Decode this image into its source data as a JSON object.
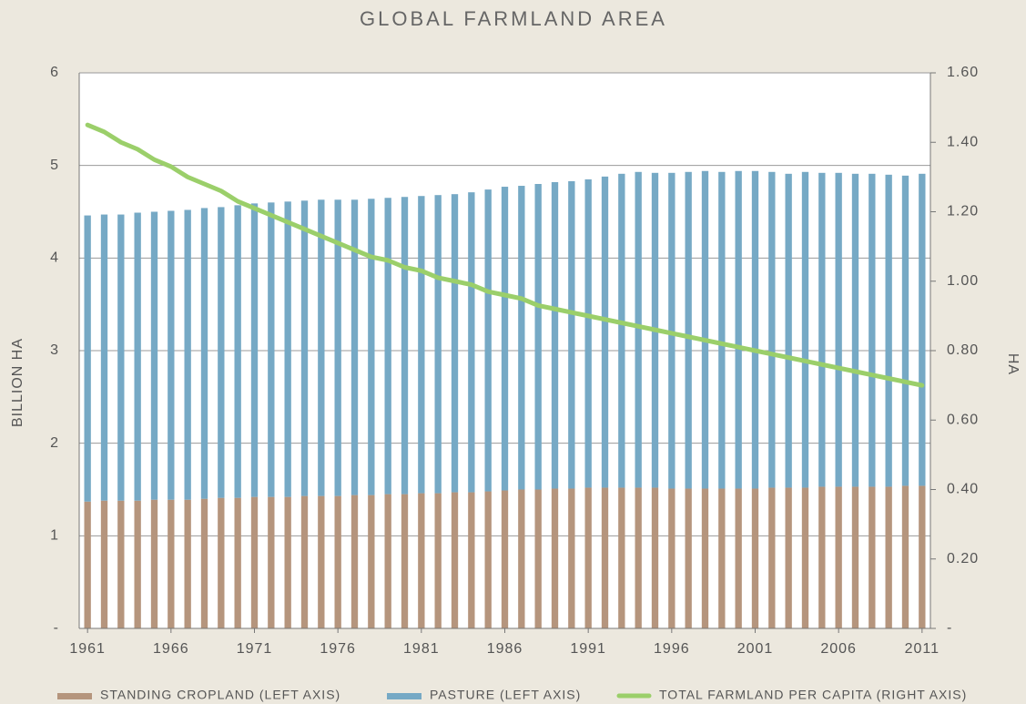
{
  "chart_data": {
    "type": "bar",
    "stacked": true,
    "title": "GLOBAL FARMLAND AREA",
    "y_label": "BILLION HA",
    "y2_label": "HA",
    "x": [
      1961,
      1962,
      1963,
      1964,
      1965,
      1966,
      1967,
      1968,
      1969,
      1970,
      1971,
      1972,
      1973,
      1974,
      1975,
      1976,
      1977,
      1978,
      1979,
      1980,
      1981,
      1982,
      1983,
      1984,
      1985,
      1986,
      1987,
      1988,
      1989,
      1990,
      1991,
      1992,
      1993,
      1994,
      1995,
      1996,
      1997,
      1998,
      1999,
      2000,
      2001,
      2002,
      2003,
      2004,
      2005,
      2006,
      2007,
      2008,
      2009,
      2010,
      2011
    ],
    "xlim": [
      1960.5,
      2011.5
    ],
    "xticks": [
      1961,
      1966,
      1971,
      1976,
      1981,
      1986,
      1991,
      1996,
      2001,
      2006,
      2011
    ],
    "ylim": [
      0,
      6
    ],
    "yticks": [
      {
        "value": 0,
        "label": "-"
      },
      1,
      2,
      3,
      4,
      5,
      6
    ],
    "y2lim": [
      0,
      1.6
    ],
    "y2ticks": [
      {
        "value": 0,
        "label": "-"
      },
      {
        "value": 0.2,
        "label": "0.20"
      },
      {
        "value": 0.4,
        "label": "0.40"
      },
      {
        "value": 0.6,
        "label": "0.60"
      },
      {
        "value": 0.8,
        "label": "0.80"
      },
      {
        "value": 1.0,
        "label": "1.00"
      },
      {
        "value": 1.2,
        "label": "1.20"
      },
      {
        "value": 1.4,
        "label": "1.40"
      },
      {
        "value": 1.6,
        "label": "1.60"
      }
    ],
    "grid": true,
    "series": [
      {
        "name": "STANDING CROPLAND (LEFT AXIS)",
        "color": "#b5957d",
        "type": "bar",
        "values": [
          1.37,
          1.38,
          1.38,
          1.38,
          1.39,
          1.39,
          1.39,
          1.4,
          1.41,
          1.41,
          1.42,
          1.42,
          1.42,
          1.43,
          1.43,
          1.43,
          1.44,
          1.44,
          1.45,
          1.45,
          1.46,
          1.46,
          1.47,
          1.47,
          1.48,
          1.49,
          1.5,
          1.5,
          1.51,
          1.51,
          1.52,
          1.52,
          1.52,
          1.52,
          1.52,
          1.51,
          1.51,
          1.51,
          1.51,
          1.51,
          1.51,
          1.52,
          1.52,
          1.52,
          1.53,
          1.53,
          1.53,
          1.53,
          1.53,
          1.54,
          1.54
        ]
      },
      {
        "name": "PASTURE (LEFT AXIS)",
        "color": "#76a9c5",
        "type": "bar",
        "values": [
          3.09,
          3.09,
          3.09,
          3.11,
          3.11,
          3.12,
          3.13,
          3.14,
          3.14,
          3.16,
          3.17,
          3.18,
          3.19,
          3.19,
          3.2,
          3.2,
          3.19,
          3.2,
          3.2,
          3.21,
          3.21,
          3.22,
          3.22,
          3.24,
          3.26,
          3.28,
          3.28,
          3.3,
          3.31,
          3.32,
          3.33,
          3.36,
          3.39,
          3.41,
          3.4,
          3.41,
          3.42,
          3.43,
          3.42,
          3.43,
          3.43,
          3.41,
          3.39,
          3.41,
          3.39,
          3.39,
          3.38,
          3.38,
          3.37,
          3.35,
          3.37
        ]
      },
      {
        "name": "TOTAL FARMLAND PER CAPITA (RIGHT AXIS)",
        "color": "#9bcf6a",
        "type": "line",
        "axis": "y2",
        "values": [
          1.45,
          1.43,
          1.4,
          1.38,
          1.35,
          1.33,
          1.3,
          1.28,
          1.26,
          1.23,
          1.21,
          1.19,
          1.17,
          1.15,
          1.13,
          1.11,
          1.09,
          1.07,
          1.06,
          1.04,
          1.03,
          1.01,
          1.0,
          0.99,
          0.97,
          0.96,
          0.95,
          0.93,
          0.92,
          0.91,
          0.9,
          0.89,
          0.88,
          0.87,
          0.86,
          0.85,
          0.84,
          0.83,
          0.82,
          0.81,
          0.8,
          0.79,
          0.78,
          0.77,
          0.76,
          0.75,
          0.74,
          0.73,
          0.72,
          0.71,
          0.7
        ]
      }
    ]
  }
}
